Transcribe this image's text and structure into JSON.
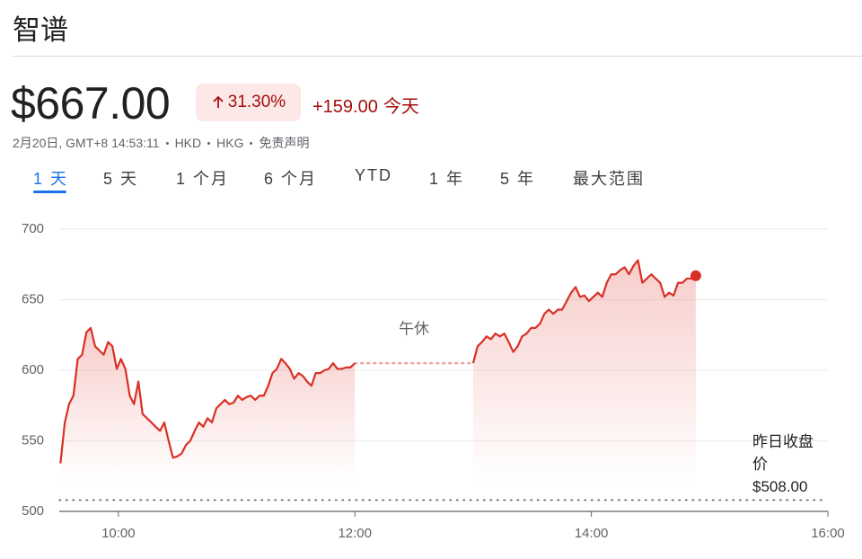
{
  "header": {
    "name": "智谱",
    "price": "$667.00",
    "change_pct": "31.30%",
    "change_abs": "+159.00",
    "period": "今天",
    "info": {
      "date": "2月20日, GMT+8 14:53:11",
      "currency": "HKD",
      "exchange": "HKG",
      "disclaimer": "免责声明"
    }
  },
  "ranges": [
    "1 天",
    "5 天",
    "1 个月",
    "6 个月",
    "YTD",
    "1 年",
    "5 年",
    "最大范围"
  ],
  "chart_data": {
    "type": "line",
    "color": "#d93025",
    "x": [
      9.51,
      9.547,
      9.583,
      9.62,
      9.656,
      9.693,
      9.73,
      9.766,
      9.803,
      9.839,
      9.876,
      9.913,
      9.949,
      9.986,
      10.022,
      10.059,
      10.096,
      10.132,
      10.169,
      10.205,
      10.242,
      10.279,
      10.315,
      10.352,
      10.388,
      10.425,
      10.462,
      10.498,
      10.535,
      10.571,
      10.608,
      10.645,
      10.681,
      10.718,
      10.754,
      10.791,
      10.828,
      10.864,
      10.901,
      10.937,
      10.974,
      11.011,
      11.047,
      11.084,
      11.12,
      11.157,
      11.194,
      11.23,
      11.267,
      11.303,
      11.34,
      11.377,
      11.413,
      11.45,
      11.486,
      11.523,
      11.56,
      11.596,
      11.633,
      11.669,
      11.706,
      11.743,
      11.779,
      11.816,
      11.852,
      11.889,
      11.926,
      11.962,
      12.0,
      12.5,
      13.0,
      13.038,
      13.075,
      13.113,
      13.151,
      13.188,
      13.226,
      13.264,
      13.301,
      13.339,
      13.377,
      13.414,
      13.452,
      13.49,
      13.527,
      13.565,
      13.603,
      13.64,
      13.678,
      13.716,
      13.753,
      13.791,
      13.829,
      13.866,
      13.904,
      13.942,
      13.979,
      14.017,
      14.055,
      14.092,
      14.13,
      14.168,
      14.205,
      14.243,
      14.281,
      14.318,
      14.356,
      14.394,
      14.431,
      14.469,
      14.507,
      14.544,
      14.582,
      14.62,
      14.657,
      14.695,
      14.733,
      14.77,
      14.808,
      14.846,
      14.883
    ],
    "values": [
      534,
      563,
      576,
      582,
      608,
      611,
      627,
      630,
      617,
      614,
      611,
      620,
      617,
      601,
      608,
      601,
      582,
      576,
      592,
      569,
      566,
      563,
      560,
      557,
      563,
      550,
      538,
      539,
      541,
      547,
      550,
      557,
      563,
      560,
      566,
      563,
      573,
      576,
      579,
      576,
      577,
      582,
      579,
      581,
      582,
      579,
      582,
      582,
      589,
      598,
      601,
      608,
      605,
      601,
      594,
      598,
      596,
      592,
      589,
      598,
      598,
      600,
      601,
      605,
      601,
      601,
      602,
      602,
      605,
      null,
      605,
      617,
      620,
      624,
      622,
      626,
      624,
      626,
      620,
      613,
      617,
      624,
      626,
      630,
      630,
      633,
      640,
      643,
      640,
      643,
      643,
      649,
      655,
      659,
      652,
      653,
      649,
      652,
      655,
      652,
      662,
      668,
      668,
      671,
      673,
      668,
      674,
      678,
      662,
      665,
      668,
      665,
      662,
      652,
      655,
      653,
      662,
      662,
      665,
      665,
      667
    ],
    "xlim": [
      9.5,
      16
    ],
    "xticks": [
      {
        "value": 10,
        "label": "10:00"
      },
      {
        "value": 12,
        "label": "12:00"
      },
      {
        "value": 14,
        "label": "14:00"
      },
      {
        "value": 16,
        "label": "16:00"
      }
    ],
    "ylim": [
      500,
      700
    ],
    "yticks": [
      500,
      550,
      600,
      650,
      700
    ],
    "grid": true,
    "annotation": "午休",
    "reference_line": {
      "label": "昨日收盘价",
      "value": 508,
      "value_label": "$508.00"
    }
  }
}
